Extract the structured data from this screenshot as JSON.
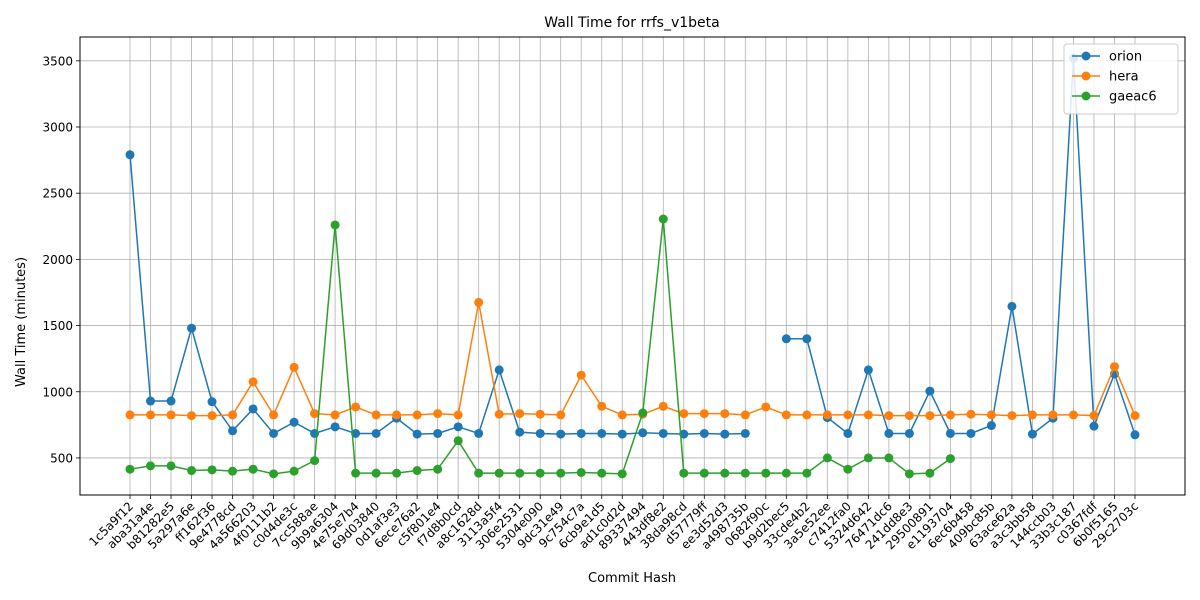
{
  "chart_data": {
    "type": "line",
    "title": "Wall Time for rrfs_v1beta",
    "xlabel": "Commit Hash",
    "ylabel": "Wall Time (minutes)",
    "ylim": [
      220,
      3680
    ],
    "yticks": [
      500,
      1000,
      1500,
      2000,
      2500,
      3000,
      3500
    ],
    "ytick_labels": [
      "500",
      "1000",
      "1500",
      "2000",
      "2500",
      "3000",
      "3500"
    ],
    "grid": true,
    "legend_position": "top-right",
    "categories": [
      "1c5a9f12",
      "aba31a4e",
      "b81282e5",
      "5a297a6e",
      "ff162f36",
      "9e4778cd",
      "4a566203",
      "4f0111b2",
      "c0d4de3c",
      "7cc588ae",
      "9b9a6304",
      "4e75e7b4",
      "69d03840",
      "0d1af3e3",
      "6ece76a2",
      "c5f801e4",
      "f7d8b0cd",
      "a8c1628d",
      "3113a5f4",
      "306e2531",
      "5304e090",
      "9dc31e49",
      "9c754c7a",
      "6cb9e1d5",
      "ad1c0d2d",
      "89337494",
      "443df8e2",
      "38da98cd",
      "d57779ff",
      "ee3d52d3",
      "a498735b",
      "0682f90c",
      "b9d2bec5",
      "33cde4b2",
      "3a5e52ee",
      "c7412fa0",
      "5324d642",
      "76471dc6",
      "241dd8e3",
      "29500891",
      "e1193704",
      "6ec6b458",
      "409bc85b",
      "63ace62a",
      "a3c3bb58",
      "144ccb03",
      "33b3c187",
      "c0367fdf",
      "6b0f5165",
      "29c2703c"
    ],
    "series": [
      {
        "name": "orion",
        "color": "#1f77b4",
        "values": [
          2790,
          930,
          930,
          1480,
          925,
          705,
          870,
          685,
          770,
          685,
          735,
          685,
          685,
          800,
          680,
          685,
          735,
          685,
          1165,
          695,
          685,
          680,
          685,
          685,
          680,
          690,
          685,
          680,
          685,
          680,
          685,
          null,
          1400,
          1400,
          805,
          685,
          1165,
          685,
          685,
          1005,
          685,
          685,
          745,
          1645,
          680,
          800,
          3520,
          740,
          1135,
          675
        ]
      },
      {
        "name": "hera",
        "color": "#ff7f0e",
        "values": [
          825,
          825,
          825,
          820,
          820,
          825,
          1075,
          825,
          1185,
          835,
          825,
          885,
          825,
          825,
          825,
          835,
          825,
          1675,
          830,
          835,
          830,
          825,
          1125,
          890,
          825,
          830,
          890,
          835,
          835,
          835,
          825,
          885,
          825,
          825,
          825,
          825,
          825,
          820,
          820,
          820,
          825,
          830,
          825,
          820,
          825,
          825,
          825,
          820,
          1190,
          820
        ]
      },
      {
        "name": "gaeac6",
        "color": "#2ca02c",
        "values": [
          415,
          440,
          440,
          405,
          410,
          400,
          415,
          380,
          400,
          480,
          2260,
          385,
          385,
          385,
          405,
          415,
          630,
          385,
          385,
          385,
          385,
          385,
          390,
          385,
          380,
          840,
          2305,
          385,
          385,
          385,
          385,
          385,
          385,
          385,
          500,
          415,
          500,
          500,
          380,
          385,
          495,
          null,
          null,
          null,
          null,
          null,
          null,
          null,
          null,
          null
        ]
      }
    ]
  }
}
